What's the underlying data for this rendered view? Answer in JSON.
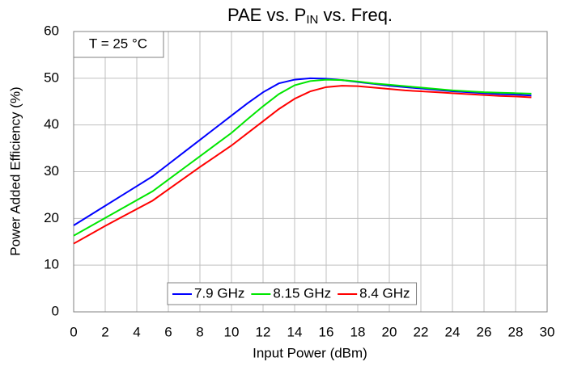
{
  "chart_data": {
    "type": "line",
    "title": {
      "text": "PAE vs. P",
      "subscript": "IN",
      "suffix": " vs. Freq."
    },
    "xlabel": "Input Power (dBm)",
    "ylabel": "Power Added Efficiency (%)",
    "annotation": "T = 25 °C",
    "x": [
      0,
      1,
      2,
      3,
      4,
      5,
      6,
      7,
      8,
      9,
      10,
      11,
      12,
      13,
      14,
      15,
      16,
      17,
      18,
      19,
      20,
      21,
      22,
      23,
      24,
      25,
      26,
      27,
      28,
      29
    ],
    "series": [
      {
        "name": "7.9 GHz",
        "color": "#0000ff",
        "values": [
          18.5,
          20.6,
          22.7,
          24.8,
          26.9,
          29.0,
          31.6,
          34.2,
          36.8,
          39.4,
          42.0,
          44.6,
          47.0,
          48.9,
          49.7,
          50.0,
          49.9,
          49.6,
          49.2,
          48.8,
          48.4,
          48.1,
          47.8,
          47.5,
          47.2,
          47.0,
          46.8,
          46.6,
          46.5,
          46.3
        ]
      },
      {
        "name": "8.15 GHz",
        "color": "#00e600",
        "values": [
          16.3,
          18.2,
          20.1,
          22.0,
          23.9,
          25.8,
          28.3,
          30.8,
          33.3,
          35.8,
          38.3,
          41.2,
          44.0,
          46.6,
          48.5,
          49.4,
          49.7,
          49.6,
          49.3,
          48.9,
          48.6,
          48.3,
          48.0,
          47.7,
          47.4,
          47.2,
          47.0,
          46.9,
          46.8,
          46.7
        ]
      },
      {
        "name": "8.4 GHz",
        "color": "#ff0000",
        "values": [
          14.6,
          16.5,
          18.4,
          20.2,
          22.0,
          23.8,
          26.2,
          28.6,
          31.0,
          33.3,
          35.6,
          38.2,
          40.8,
          43.4,
          45.6,
          47.2,
          48.1,
          48.4,
          48.3,
          48.0,
          47.7,
          47.4,
          47.2,
          47.0,
          46.8,
          46.6,
          46.4,
          46.2,
          46.1,
          45.9
        ]
      }
    ],
    "xlim": [
      0,
      30
    ],
    "xticks": [
      0,
      2,
      4,
      6,
      8,
      10,
      12,
      14,
      16,
      18,
      20,
      22,
      24,
      26,
      28,
      30
    ],
    "ylim": [
      0,
      60
    ],
    "yticks": [
      0,
      10,
      20,
      30,
      40,
      50,
      60
    ],
    "grid": true,
    "legend": "bottom"
  }
}
